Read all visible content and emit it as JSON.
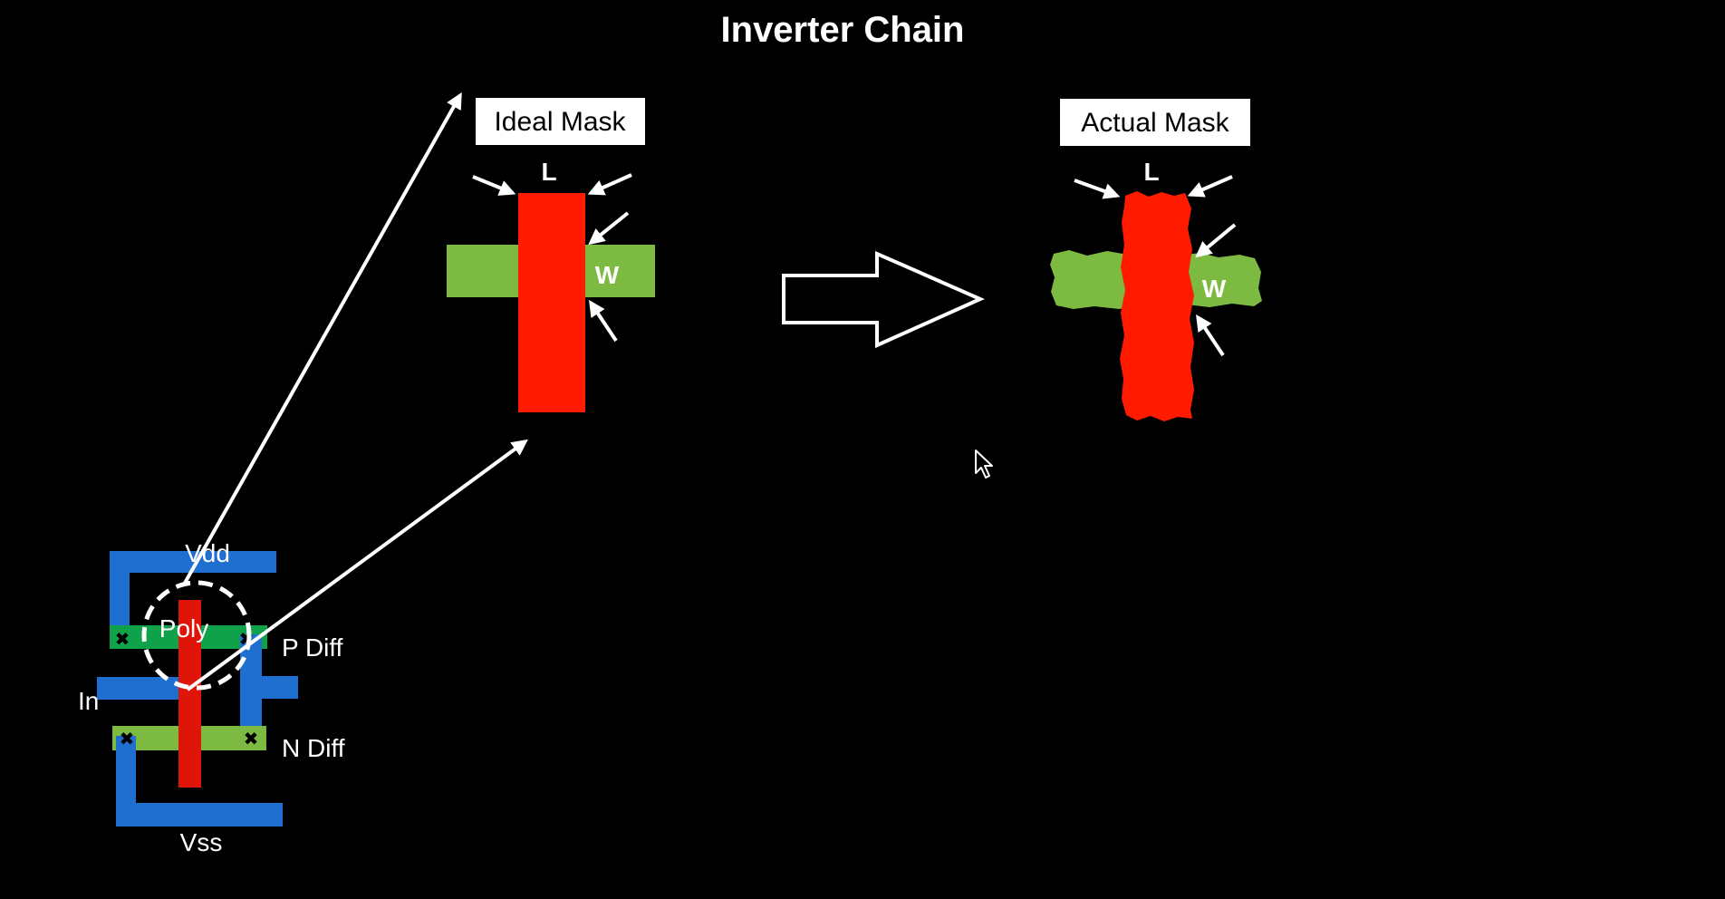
{
  "slide": {
    "title": "Inverter Chain",
    "background_color": "#000000"
  },
  "ideal_mask": {
    "label": "Ideal Mask",
    "length_label": "L",
    "width_label": "W",
    "poly_color": "#ff1a00",
    "diffusion_color": "#7dba41"
  },
  "actual_mask": {
    "label": "Actual Mask",
    "length_label": "L",
    "width_label": "W",
    "poly_color": "#ff1a00",
    "diffusion_color": "#7dba41"
  },
  "layout": {
    "vdd_label": "Vdd",
    "poly_label": "Poly",
    "p_diff_label": "P Diff",
    "in_label": "In",
    "n_diff_label": "N Diff",
    "vss_label": "Vss",
    "metal_color": "#1f6fd1",
    "p_diff_color": "#0fa24a",
    "n_diff_color": "#7dba41",
    "poly_color": "#e0150a"
  },
  "icons": {
    "transform_arrow": "right-arrow-outline-icon",
    "cursor": "mouse-pointer-icon",
    "contact": "x-contact-icon"
  }
}
